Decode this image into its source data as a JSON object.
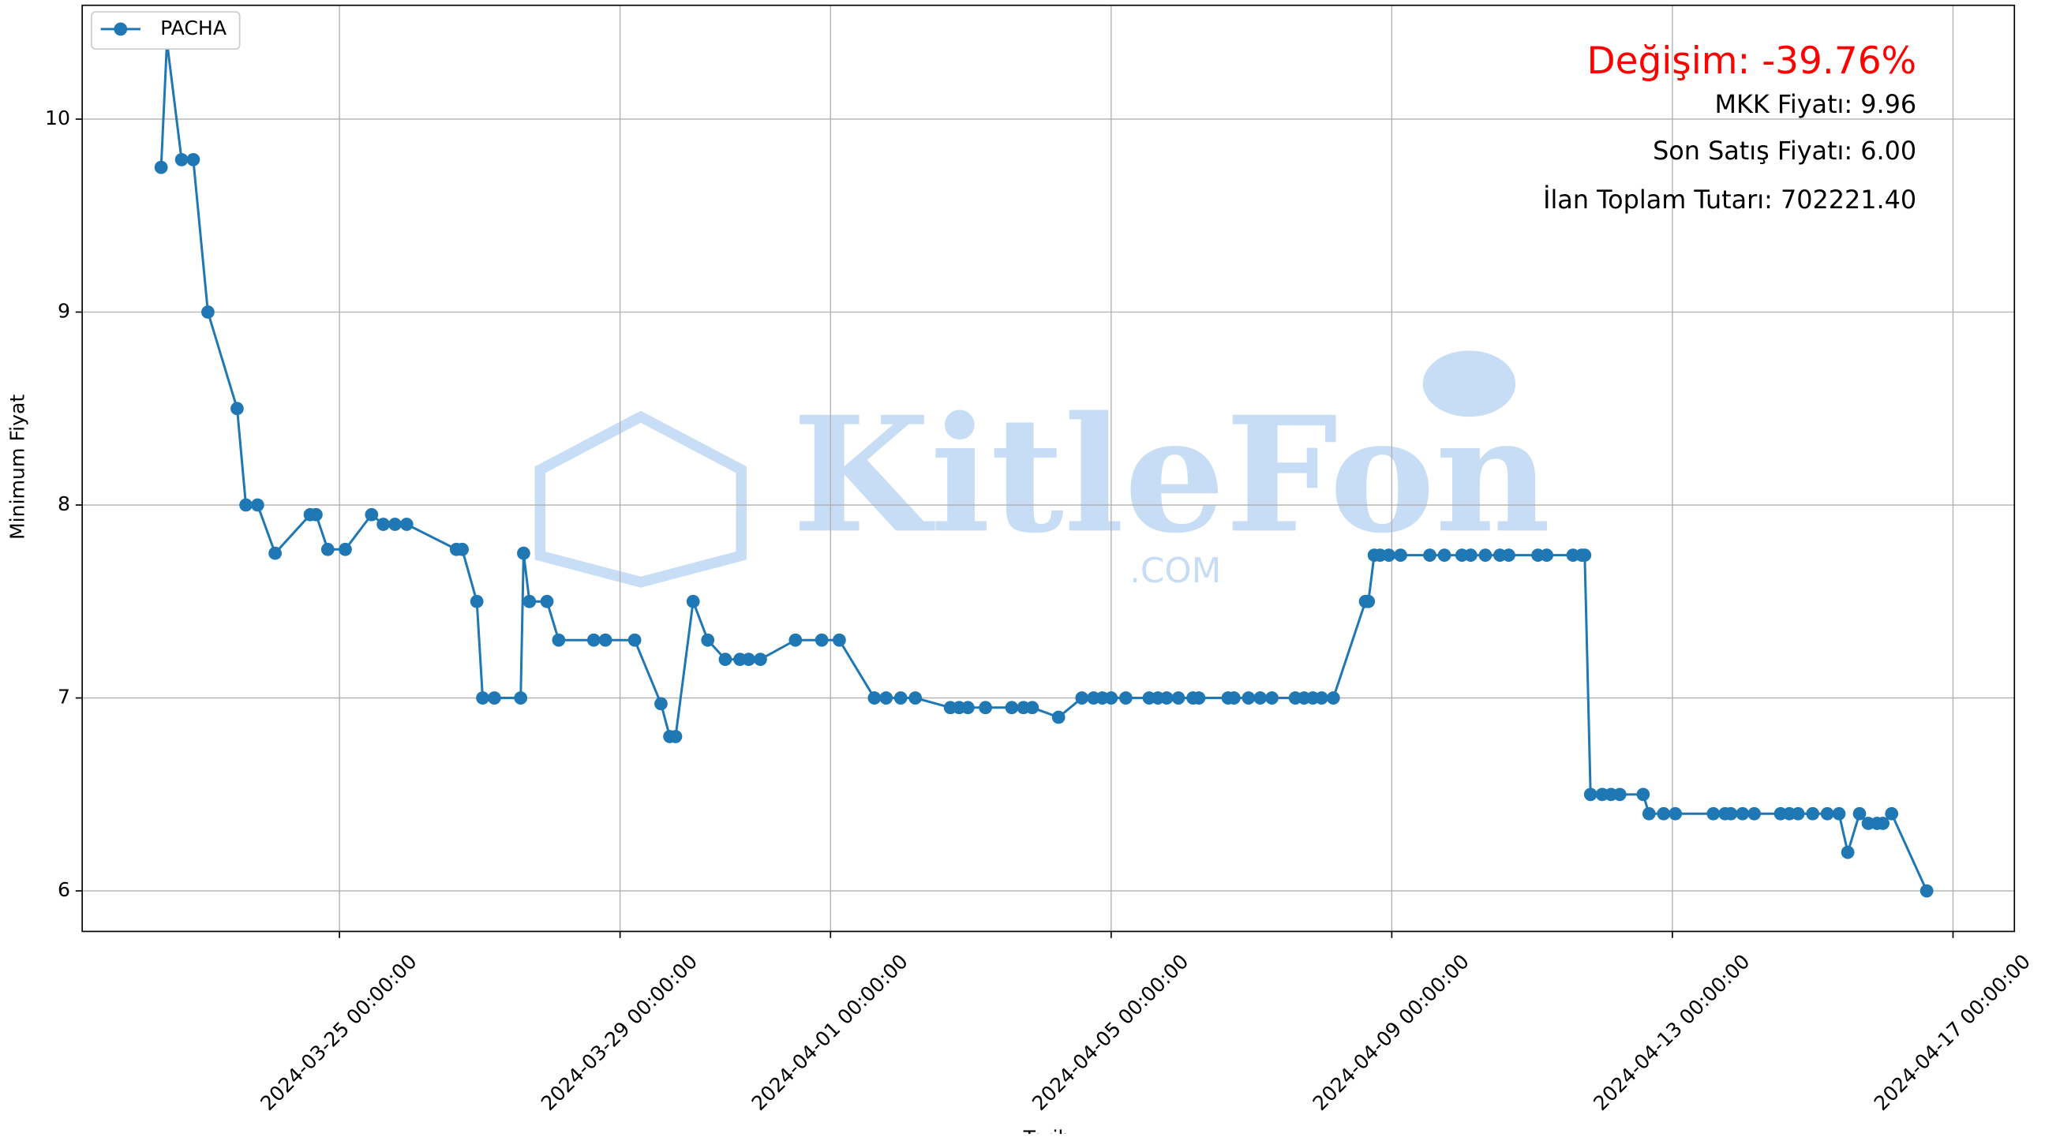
{
  "chart_data": {
    "type": "line",
    "xlabel": "Tarih",
    "ylabel": "Minimum Fiyat",
    "annotations": [
      "Değişim: -39.76%",
      "MKK Fiyatı: 9.96",
      "Son Satış Fiyatı: 6.00",
      "İlan Toplam Tutarı: 702221.40"
    ],
    "annotation_colors": [
      "#ff0000",
      "#000000",
      "#000000",
      "#000000"
    ],
    "watermark": [
      "KitleFon",
      ".COM"
    ],
    "legend": "upper left",
    "grid": true,
    "xlim": [
      "2024-03-21 08:00:00",
      "2024-04-17 21:00:00"
    ],
    "xticks": [
      "2024-03-25 00:00:00",
      "2024-03-29 00:00:00",
      "2024-04-01 00:00:00",
      "2024-04-05 00:00:00",
      "2024-04-09 00:00:00",
      "2024-04-13 00:00:00",
      "2024-04-17 00:00:00"
    ],
    "ylim": [
      5.79,
      10.59
    ],
    "yticks": [
      6,
      7,
      8,
      9,
      10
    ],
    "x": [
      "2024-03-22 11:00:00",
      "2024-03-22 13:00:00",
      "2024-03-22 18:00:00",
      "2024-03-22 22:00:00",
      "2024-03-23 03:00:00",
      "2024-03-23 13:00:00",
      "2024-03-23 16:00:00",
      "2024-03-23 20:00:00",
      "2024-03-24 02:00:00",
      "2024-03-24 14:00:00",
      "2024-03-24 16:00:00",
      "2024-03-24 20:00:00",
      "2024-03-25 02:00:00",
      "2024-03-25 11:00:00",
      "2024-03-25 15:00:00",
      "2024-03-25 19:00:00",
      "2024-03-25 23:00:00",
      "2024-03-26 16:00:00",
      "2024-03-26 18:00:00",
      "2024-03-26 23:00:00",
      "2024-03-27 01:00:00",
      "2024-03-27 05:00:00",
      "2024-03-27 14:00:00",
      "2024-03-27 15:00:00",
      "2024-03-27 17:00:00",
      "2024-03-27 23:00:00",
      "2024-03-28 03:00:00",
      "2024-03-28 15:00:00",
      "2024-03-28 19:00:00",
      "2024-03-29 05:00:00",
      "2024-03-29 14:00:00",
      "2024-03-29 17:00:00",
      "2024-03-29 19:00:00",
      "2024-03-30 01:00:00",
      "2024-03-30 06:00:00",
      "2024-03-30 12:00:00",
      "2024-03-30 17:00:00",
      "2024-03-30 20:00:00",
      "2024-03-31 00:00:00",
      "2024-03-31 12:00:00",
      "2024-03-31 21:00:00",
      "2024-04-01 03:00:00",
      "2024-04-01 15:00:00",
      "2024-04-01 19:00:00",
      "2024-04-02 00:00:00",
      "2024-04-02 05:00:00",
      "2024-04-02 17:00:00",
      "2024-04-02 20:00:00",
      "2024-04-02 23:00:00",
      "2024-04-03 05:00:00",
      "2024-04-03 14:00:00",
      "2024-04-03 18:00:00",
      "2024-04-03 21:00:00",
      "2024-04-04 06:00:00",
      "2024-04-04 14:00:00",
      "2024-04-04 18:00:00",
      "2024-04-04 21:00:00",
      "2024-04-05 00:00:00",
      "2024-04-05 05:00:00",
      "2024-04-05 13:00:00",
      "2024-04-05 16:00:00",
      "2024-04-05 19:00:00",
      "2024-04-05 23:00:00",
      "2024-04-06 04:00:00",
      "2024-04-06 06:00:00",
      "2024-04-06 16:00:00",
      "2024-04-06 18:00:00",
      "2024-04-06 23:00:00",
      "2024-04-07 03:00:00",
      "2024-04-07 07:00:00",
      "2024-04-07 15:00:00",
      "2024-04-07 18:00:00",
      "2024-04-07 21:00:00",
      "2024-04-08 00:00:00",
      "2024-04-08 04:00:00",
      "2024-04-08 15:00:00",
      "2024-04-08 16:00:00",
      "2024-04-08 18:00:00",
      "2024-04-08 20:00:00",
      "2024-04-08 23:00:00",
      "2024-04-09 03:00:00",
      "2024-04-09 13:00:00",
      "2024-04-09 18:00:00",
      "2024-04-10 00:00:00",
      "2024-04-10 03:00:00",
      "2024-04-10 08:00:00",
      "2024-04-10 13:00:00",
      "2024-04-10 16:00:00",
      "2024-04-11 02:00:00",
      "2024-04-11 05:00:00",
      "2024-04-11 14:00:00",
      "2024-04-11 17:00:00",
      "2024-04-11 18:00:00",
      "2024-04-11 20:00:00",
      "2024-04-12 00:00:00",
      "2024-04-12 03:00:00",
      "2024-04-12 06:00:00",
      "2024-04-12 14:00:00",
      "2024-04-12 16:00:00",
      "2024-04-12 21:00:00",
      "2024-04-13 01:00:00",
      "2024-04-13 14:00:00",
      "2024-04-13 18:00:00",
      "2024-04-13 20:00:00",
      "2024-04-14 00:00:00",
      "2024-04-14 04:00:00",
      "2024-04-14 13:00:00",
      "2024-04-14 16:00:00",
      "2024-04-14 19:00:00",
      "2024-04-15 00:00:00",
      "2024-04-15 05:00:00",
      "2024-04-15 09:00:00",
      "2024-04-15 12:00:00",
      "2024-04-15 16:00:00",
      "2024-04-15 19:00:00",
      "2024-04-15 22:00:00",
      "2024-04-16 00:00:00",
      "2024-04-16 03:00:00",
      "2024-04-16 15:00:00"
    ],
    "series": [
      {
        "name": "PACHA",
        "color": "#1f77b4",
        "values": [
          9.75,
          10.4,
          9.79,
          9.79,
          9.0,
          8.5,
          8.0,
          8.0,
          7.75,
          7.95,
          7.95,
          7.77,
          7.77,
          7.95,
          7.9,
          7.9,
          7.9,
          7.77,
          7.77,
          7.5,
          7.0,
          7.0,
          7.0,
          7.75,
          7.5,
          7.5,
          7.3,
          7.3,
          7.3,
          7.3,
          6.97,
          6.8,
          6.8,
          7.5,
          7.3,
          7.2,
          7.2,
          7.2,
          7.2,
          7.3,
          7.3,
          7.3,
          7.0,
          7.0,
          7.0,
          7.0,
          6.95,
          6.95,
          6.95,
          6.95,
          6.95,
          6.95,
          6.95,
          6.9,
          7.0,
          7.0,
          7.0,
          7.0,
          7.0,
          7.0,
          7.0,
          7.0,
          7.0,
          7.0,
          7.0,
          7.0,
          7.0,
          7.0,
          7.0,
          7.0,
          7.0,
          7.0,
          7.0,
          7.0,
          7.0,
          7.5,
          7.5,
          7.74,
          7.74,
          7.74,
          7.74,
          7.74,
          7.74,
          7.74,
          7.74,
          7.74,
          7.74,
          7.74,
          7.74,
          7.74,
          7.74,
          7.74,
          7.74,
          6.5,
          6.5,
          6.5,
          6.5,
          6.5,
          6.4,
          6.4,
          6.4,
          6.4,
          6.4,
          6.4,
          6.4,
          6.4,
          6.4,
          6.4,
          6.4,
          6.4,
          6.4,
          6.4,
          6.2,
          6.4,
          6.35,
          6.35,
          6.35,
          6.4,
          6.0
        ]
      }
    ]
  }
}
